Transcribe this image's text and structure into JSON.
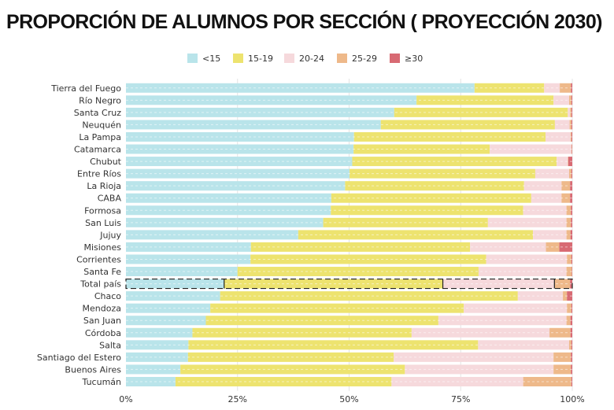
{
  "title": "PROPORCIÓN DE ALUMNOS POR SECCIÓN ( PROYECCIÓN 2030)",
  "colors": {
    "lt15": "#b9e4ea",
    "15_19": "#ede36f",
    "20_24": "#f6d9dc",
    "25_29": "#eeb98a",
    "ge30": "#d86a73"
  },
  "chart_data": {
    "type": "bar",
    "orientation": "horizontal",
    "stacked": true,
    "xlabel": "",
    "ylabel": "",
    "xlim": [
      0,
      100
    ],
    "xticks": [
      "0%",
      "25%",
      "50%",
      "75%",
      "100%"
    ],
    "legend_position": "top",
    "highlighted_category": "Total país",
    "categories": [
      "Tierra del Fuego",
      "Río Negro",
      "Santa Cruz",
      "Neuquén",
      "La Pampa",
      "Catamarca",
      "Chubut",
      "Entre Ríos",
      "La Rioja",
      "CABA",
      "Formosa",
      "San Luis",
      "Jujuy",
      "Misiones",
      "Corrientes",
      "Santa Fe",
      "Total país",
      "Chaco",
      "Mendoza",
      "San Juan",
      "Córdoba",
      "Salta",
      "Santiago del Estero",
      "Buenos Aires",
      "Tucumán"
    ],
    "series": [
      {
        "key": "lt15",
        "name": "<15",
        "values": [
          78.1,
          65.1,
          60.1,
          57.1,
          51.1,
          51.0,
          50.7,
          50.1,
          49.1,
          46.0,
          45.9,
          44.2,
          38.6,
          28.0,
          27.9,
          25.0,
          22.0,
          21.1,
          18.9,
          17.9,
          14.9,
          14.0,
          13.9,
          12.2,
          11.1
        ]
      },
      {
        "key": "15_19",
        "name": "15-19",
        "values": [
          15.6,
          30.7,
          38.9,
          39.0,
          42.9,
          30.5,
          45.8,
          41.6,
          40.1,
          44.8,
          43.1,
          36.9,
          52.6,
          49.1,
          52.8,
          54.0,
          49.0,
          66.7,
          56.8,
          52.1,
          49.1,
          64.9,
          46.1,
          50.3,
          48.4
        ]
      },
      {
        "key": "20_24",
        "name": "20-24",
        "values": [
          3.5,
          3.5,
          0.5,
          3.3,
          5.6,
          18.3,
          2.5,
          7.6,
          8.4,
          6.8,
          9.7,
          17.6,
          7.5,
          17.0,
          18.1,
          19.7,
          25.0,
          10.1,
          23.1,
          28.7,
          30.9,
          20.4,
          35.8,
          33.3,
          29.5
        ]
      },
      {
        "key": "25_29",
        "name": "25-29",
        "values": [
          2.5,
          0.5,
          0.3,
          0.4,
          0.2,
          0.1,
          0.1,
          0.5,
          1.9,
          1.9,
          1.0,
          1.0,
          0.9,
          3.0,
          1.0,
          1.2,
          3.5,
          0.9,
          1.0,
          0.9,
          4.7,
          0.5,
          3.9,
          3.9,
          10.8
        ]
      },
      {
        "key": "ge30",
        "name": "≥30",
        "values": [
          0.3,
          0.2,
          0.2,
          0.2,
          0.2,
          0.1,
          0.9,
          0.2,
          0.5,
          0.5,
          0.3,
          0.3,
          0.4,
          2.9,
          0.2,
          0.1,
          0.5,
          1.2,
          0.2,
          0.4,
          0.4,
          0.2,
          0.3,
          0.3,
          0.2
        ]
      }
    ]
  }
}
